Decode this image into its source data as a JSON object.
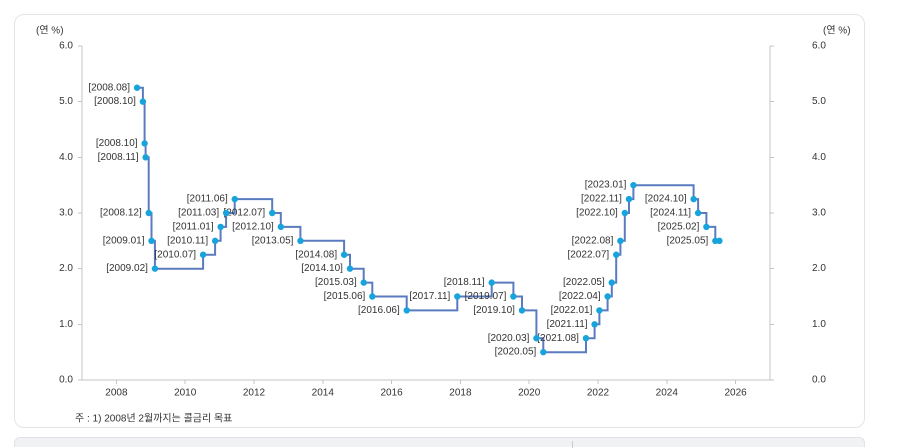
{
  "chart_data": {
    "type": "line",
    "line_shape": "step",
    "title": "",
    "xlabel": "",
    "ylabel": "(연 %)",
    "xlim": [
      2007,
      2027
    ],
    "ylim": [
      0,
      6
    ],
    "x_ticks": [
      "2008",
      "2010",
      "2012",
      "2014",
      "2016",
      "2018",
      "2020",
      "2022",
      "2024",
      "2026"
    ],
    "y_ticks": [
      "0.0",
      "1.0",
      "2.0",
      "3.0",
      "4.0",
      "5.0",
      "6.0"
    ],
    "y_axis_sides": "left-and-right",
    "grid": false,
    "legend": "none",
    "colors": {
      "line": "#5a7bbf",
      "marker": "#17a4dc"
    },
    "points": [
      {
        "x": 2008.6,
        "y": 5.25,
        "label": "[2008.08]"
      },
      {
        "x": 2008.77,
        "y": 5.0,
        "label": "[2008.10]"
      },
      {
        "x": 2008.82,
        "y": 4.25,
        "label": "[2008.10]"
      },
      {
        "x": 2008.85,
        "y": 4.0,
        "label": "[2008.11]"
      },
      {
        "x": 2008.94,
        "y": 3.0,
        "label": "[2008.12]"
      },
      {
        "x": 2009.02,
        "y": 2.5,
        "label": "[2009.01]"
      },
      {
        "x": 2009.12,
        "y": 2.0,
        "label": "[2009.02]"
      },
      {
        "x": 2010.52,
        "y": 2.25,
        "label": "[2010.07]"
      },
      {
        "x": 2010.87,
        "y": 2.5,
        "label": "[2010.11]"
      },
      {
        "x": 2011.03,
        "y": 2.75,
        "label": "[2011.01]"
      },
      {
        "x": 2011.19,
        "y": 3.0,
        "label": "[2011.03]"
      },
      {
        "x": 2011.44,
        "y": 3.25,
        "label": "[2011.06]"
      },
      {
        "x": 2012.53,
        "y": 3.0,
        "label": "[2012.07]"
      },
      {
        "x": 2012.78,
        "y": 2.75,
        "label": "[2012.10]"
      },
      {
        "x": 2013.35,
        "y": 2.5,
        "label": "[2013.05]"
      },
      {
        "x": 2014.62,
        "y": 2.25,
        "label": "[2014.08]"
      },
      {
        "x": 2014.79,
        "y": 2.0,
        "label": "[2014.10]"
      },
      {
        "x": 2015.19,
        "y": 1.75,
        "label": "[2015.03]"
      },
      {
        "x": 2015.44,
        "y": 1.5,
        "label": "[2015.06]"
      },
      {
        "x": 2016.44,
        "y": 1.25,
        "label": "[2016.06]"
      },
      {
        "x": 2017.91,
        "y": 1.5,
        "label": "[2017.11]"
      },
      {
        "x": 2018.91,
        "y": 1.75,
        "label": "[2018.11]"
      },
      {
        "x": 2019.54,
        "y": 1.5,
        "label": "[2019.07]"
      },
      {
        "x": 2019.79,
        "y": 1.25,
        "label": "[2019.10]"
      },
      {
        "x": 2020.21,
        "y": 0.75,
        "label": "[2020.03]"
      },
      {
        "x": 2020.41,
        "y": 0.5,
        "label": "[2020.05]"
      },
      {
        "x": 2021.65,
        "y": 0.75,
        "label": "[2021.08]"
      },
      {
        "x": 2021.9,
        "y": 1.0,
        "label": "[2021.11]"
      },
      {
        "x": 2022.04,
        "y": 1.25,
        "label": "[2022.01]"
      },
      {
        "x": 2022.28,
        "y": 1.5,
        "label": "[2022.04]"
      },
      {
        "x": 2022.4,
        "y": 1.75,
        "label": "[2022.05]"
      },
      {
        "x": 2022.53,
        "y": 2.25,
        "label": "[2022.07]"
      },
      {
        "x": 2022.65,
        "y": 2.5,
        "label": "[2022.08]"
      },
      {
        "x": 2022.78,
        "y": 3.0,
        "label": "[2022.10]"
      },
      {
        "x": 2022.9,
        "y": 3.25,
        "label": "[2022.11]"
      },
      {
        "x": 2023.03,
        "y": 3.5,
        "label": "[2023.01]"
      },
      {
        "x": 2024.78,
        "y": 3.25,
        "label": "[2024.10]"
      },
      {
        "x": 2024.91,
        "y": 3.0,
        "label": "[2024.11]"
      },
      {
        "x": 2025.15,
        "y": 2.75,
        "label": "[2025.02]"
      },
      {
        "x": 2025.41,
        "y": 2.5,
        "label": "[2025.05]"
      },
      {
        "x": 2025.53,
        "y": 2.5,
        "label": ""
      }
    ],
    "annotation": "주 : 1) 2008년 2월까지는 콜금리 목표"
  }
}
